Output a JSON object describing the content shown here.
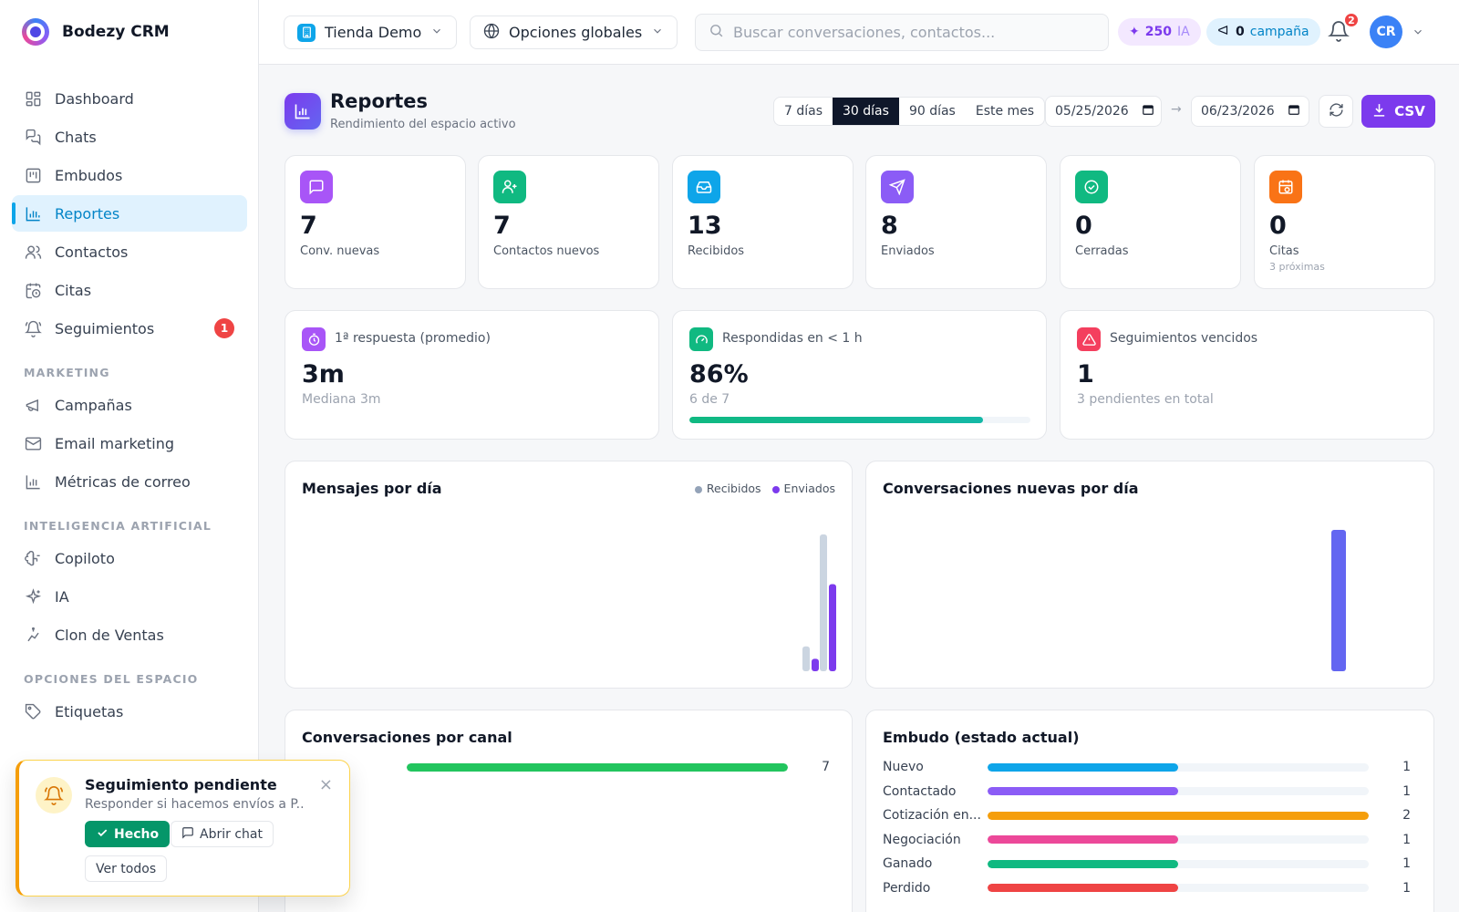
{
  "brand": {
    "name": "Bodezy CRM"
  },
  "nav": {
    "main": [
      {
        "label": "Dashboard"
      },
      {
        "label": "Chats"
      },
      {
        "label": "Embudos"
      },
      {
        "label": "Reportes"
      },
      {
        "label": "Contactos"
      },
      {
        "label": "Citas"
      },
      {
        "label": "Seguimientos",
        "badge": "1"
      }
    ],
    "marketing_title": "MARKETING",
    "marketing": [
      {
        "label": "Campañas"
      },
      {
        "label": "Email marketing"
      },
      {
        "label": "Métricas de correo"
      }
    ],
    "ai_title": "INTELIGENCIA ARTIFICIAL",
    "ai": [
      {
        "label": "Copiloto"
      },
      {
        "label": "IA"
      },
      {
        "label": "Clon de Ventas"
      }
    ],
    "space_title": "OPCIONES DEL ESPACIO",
    "space": [
      {
        "label": "Etiquetas"
      }
    ]
  },
  "topbar": {
    "store": "Tienda Demo",
    "global": "Opciones globales",
    "search_placeholder": "Buscar conversaciones, contactos...",
    "ai_credits": "250",
    "ai_label": "IA",
    "campaigns_count": "0",
    "campaigns_label": "campaña",
    "notifications": "2",
    "avatar_initials": "CR"
  },
  "page": {
    "title": "Reportes",
    "subtitle": "Rendimiento del espacio activo",
    "ranges": [
      "7 días",
      "30 días",
      "90 días",
      "Este mes"
    ],
    "active_range": "30 días",
    "date_from": "05/25/2026",
    "date_to": "06/23/2026",
    "arrow": "→",
    "csv_label": "CSV"
  },
  "stats": [
    {
      "value": "7",
      "label": "Conv. nuevas",
      "color": "#a855f7"
    },
    {
      "value": "7",
      "label": "Contactos nuevos",
      "color": "#10b981"
    },
    {
      "value": "13",
      "label": "Recibidos",
      "color": "#0ea5e9"
    },
    {
      "value": "8",
      "label": "Enviados",
      "color": "#8b5cf6"
    },
    {
      "value": "0",
      "label": "Cerradas",
      "color": "#10b981"
    },
    {
      "value": "0",
      "label": "Citas",
      "sub": "3 próximas",
      "color": "#f97316"
    }
  ],
  "kpis": {
    "first_response": {
      "label": "1ª respuesta (promedio)",
      "value": "3m",
      "sub": "Mediana 3m",
      "color": "#a855f7"
    },
    "answered": {
      "label": "Respondidas en < 1 h",
      "value": "86%",
      "sub": "6 de 7",
      "progress": 0.86,
      "color": "#10b981"
    },
    "overdue": {
      "label": "Seguimientos vencidos",
      "value": "1",
      "sub": "3 pendientes en total",
      "color": "#f43f5e"
    }
  },
  "charts": {
    "messages_title": "Mensajes por día",
    "legend_received": "Recibidos",
    "legend_sent": "Enviados",
    "new_convs_title": "Conversaciones nuevas por día",
    "channel_title": "Conversaciones por canal",
    "funnel_title": "Embudo (estado actual)"
  },
  "chart_data": [
    {
      "type": "bar",
      "title": "Mensajes por día",
      "series": [
        {
          "name": "Recibidos",
          "values": [
            2,
            11
          ],
          "color": "#cbd5e1"
        },
        {
          "name": "Enviados",
          "values": [
            1,
            7
          ],
          "color": "#7c3aed"
        }
      ],
      "categories": [
        "",
        ""
      ]
    },
    {
      "type": "bar",
      "title": "Conversaciones nuevas por día",
      "values": [
        7
      ],
      "color": "#6366f1"
    },
    {
      "type": "bar",
      "title": "Conversaciones por canal",
      "categories": [
        "...pp"
      ],
      "values": [
        7
      ],
      "max": 7,
      "color": "#22c55e"
    },
    {
      "type": "bar",
      "title": "Embudo (estado actual)",
      "categories": [
        "Nuevo",
        "Contactado",
        "Cotización en...",
        "Negociación",
        "Ganado",
        "Perdido"
      ],
      "values": [
        1,
        1,
        2,
        1,
        1,
        1
      ],
      "max": 2,
      "colors": [
        "#0ea5e9",
        "#8b5cf6",
        "#f59e0b",
        "#ec4899",
        "#10b981",
        "#ef4444"
      ]
    }
  ],
  "toast": {
    "title": "Seguimiento pendiente",
    "text": "Responder si hacemos envíos a P...",
    "done": "Hecho",
    "open_chat": "Abrir chat",
    "view_all": "Ver todos"
  }
}
